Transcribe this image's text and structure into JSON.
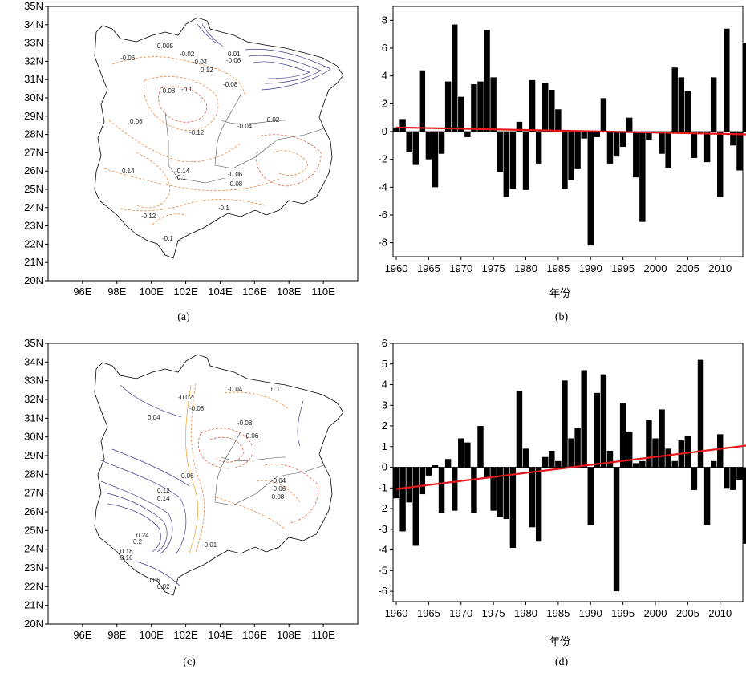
{
  "chart_data": [
    {
      "id": "a",
      "type": "contour_map",
      "caption": "(a)",
      "lat_ticks": [
        "35N",
        "34N",
        "33N",
        "32N",
        "31N",
        "30N",
        "29N",
        "28N",
        "27N",
        "26N",
        "25N",
        "24N",
        "23N",
        "22N",
        "21N",
        "20N"
      ],
      "lon_ticks": [
        "96E",
        "98E",
        "100E",
        "102E",
        "104E",
        "106E",
        "108E",
        "110E"
      ],
      "contour_labels": [
        "0.005",
        "-0.02",
        "-0.04",
        "0.12",
        "-0.06",
        "-0.06",
        "0.01",
        "-0.08",
        "-0.08",
        "-0.1",
        "0.06",
        "-0.12",
        "-0.04",
        "-0.02",
        "0.14",
        "-0.14",
        "-0.1",
        "-0.06",
        "-0.08",
        "-0.12",
        "-0.1",
        "-0.1"
      ]
    },
    {
      "id": "b",
      "type": "bar",
      "caption": "(b)",
      "xlabel": "年份",
      "x_start": 1960,
      "xlim": [
        1959.5,
        2013.5
      ],
      "ylim": [
        -9,
        9
      ],
      "x_ticks": [
        "1960",
        "1965",
        "1970",
        "1975",
        "1980",
        "1985",
        "1990",
        "1995",
        "2000",
        "2005",
        "2010"
      ],
      "y_ticks": [
        "8",
        "6",
        "4",
        "2",
        "0",
        "-2",
        "-4",
        "-6",
        "-8"
      ],
      "values": [
        0.3,
        0.9,
        -1.5,
        -2.4,
        4.4,
        -2.0,
        -4.0,
        -1.6,
        3.6,
        7.7,
        2.5,
        -0.4,
        3.4,
        3.6,
        7.3,
        3.9,
        -2.9,
        -4.7,
        -4.1,
        0.7,
        -4.2,
        3.7,
        -2.3,
        3.5,
        3.0,
        1.6,
        -4.1,
        -3.5,
        -2.7,
        -0.5,
        -8.2,
        -0.4,
        2.4,
        -2.3,
        -1.8,
        -1.1,
        1.0,
        -3.3,
        -6.5,
        -0.6,
        0.0,
        -1.6,
        -2.6,
        4.6,
        3.9,
        2.9,
        -1.9,
        -0.1,
        -2.2,
        3.9,
        -4.7,
        7.4,
        -1.0,
        -2.8,
        6.4
      ],
      "trend": {
        "start": 0.3,
        "end": -0.2,
        "color": "#e31a1c"
      }
    },
    {
      "id": "c",
      "type": "contour_map",
      "caption": "(c)",
      "lat_ticks": [
        "35N",
        "34N",
        "33N",
        "32N",
        "31N",
        "30N",
        "29N",
        "28N",
        "27N",
        "26N",
        "25N",
        "24N",
        "23N",
        "22N",
        "21N",
        "20N"
      ],
      "lon_ticks": [
        "96E",
        "98E",
        "100E",
        "102E",
        "104E",
        "106E",
        "108E",
        "110E"
      ],
      "contour_labels": [
        "0.04",
        "-0.02",
        "-0.04",
        "-0.08",
        "-0.08",
        "0.06",
        "-0.06",
        "0.12",
        "0.14",
        "-0.04",
        "-0.06",
        "-0.08",
        "0.24",
        "0.2",
        "0.18",
        "0.16",
        "-0.01",
        "0.06",
        "0.02",
        "0.1"
      ]
    },
    {
      "id": "d",
      "type": "bar",
      "caption": "(d)",
      "xlabel": "年份",
      "x_start": 1960,
      "xlim": [
        1959.5,
        2013.5
      ],
      "ylim": [
        -6.5,
        6
      ],
      "x_ticks": [
        "1960",
        "1965",
        "1970",
        "1975",
        "1980",
        "1985",
        "1990",
        "1995",
        "2000",
        "2005",
        "2010"
      ],
      "y_ticks": [
        "6",
        "5",
        "4",
        "3",
        "2",
        "1",
        "0",
        "-1",
        "-2",
        "-3",
        "-4",
        "-5",
        "-6"
      ],
      "values": [
        -1.5,
        -3.1,
        -1.7,
        -3.8,
        -1.3,
        -0.4,
        0.1,
        -2.2,
        0.4,
        -2.1,
        1.4,
        1.2,
        -2.2,
        2.0,
        -0.5,
        -2.1,
        -2.4,
        -2.5,
        -3.9,
        3.7,
        0.9,
        -2.9,
        -3.6,
        0.5,
        0.8,
        0.3,
        4.2,
        1.4,
        1.9,
        4.7,
        -2.8,
        3.6,
        4.5,
        0.8,
        -6.0,
        3.1,
        1.7,
        0.2,
        0.3,
        2.3,
        1.4,
        2.8,
        0.9,
        0.3,
        1.3,
        1.5,
        -1.1,
        5.2,
        -2.8,
        0.3,
        1.6,
        -1.0,
        -1.1,
        -0.6,
        -3.7
      ],
      "trend": {
        "start": -1.05,
        "end": 1.05,
        "color": "#e31a1c"
      }
    }
  ],
  "colors": {
    "bar": "#000000",
    "trend": "#e31a1c",
    "contour_neg": "#e8782a",
    "contour_pos": "#3b3f8f",
    "border": "#000000"
  }
}
